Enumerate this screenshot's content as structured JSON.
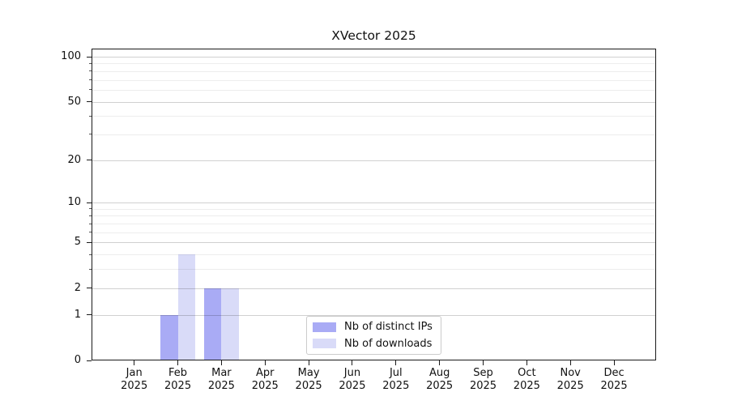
{
  "chart_data": {
    "type": "bar",
    "title": "XVector 2025",
    "categories": [
      "Jan 2025",
      "Feb 2025",
      "Mar 2025",
      "Apr 2025",
      "May 2025",
      "Jun 2025",
      "Jul 2025",
      "Aug 2025",
      "Sep 2025",
      "Oct 2025",
      "Nov 2025",
      "Dec 2025"
    ],
    "series": [
      {
        "name": "Nb of distinct IPs",
        "color": "#a9abf5",
        "values": [
          0,
          1,
          2,
          0,
          0,
          0,
          0,
          0,
          0,
          0,
          0,
          0
        ]
      },
      {
        "name": "Nb of downloads",
        "color": "#d9dbf8",
        "values": [
          0,
          4,
          2,
          0,
          0,
          0,
          0,
          0,
          0,
          0,
          0,
          0
        ]
      }
    ],
    "xlabel": "",
    "ylabel": "",
    "y_axis": {
      "scale": "log1p",
      "major_ticks": [
        0,
        1,
        2,
        5,
        10,
        20,
        50,
        100
      ],
      "minor_ticks": [
        3,
        4,
        6,
        7,
        8,
        9,
        30,
        40,
        60,
        70,
        80,
        90
      ],
      "ylim": [
        0,
        113
      ]
    },
    "grid": "horizontal",
    "legend_position": "lower center"
  }
}
